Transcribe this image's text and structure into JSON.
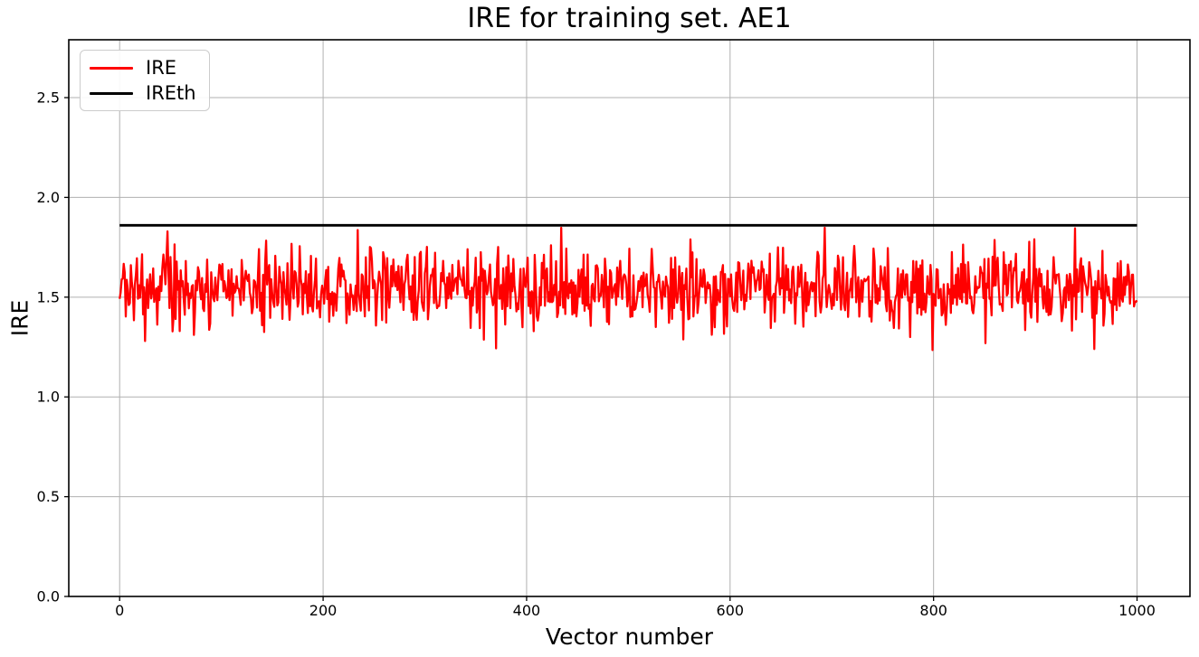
{
  "window": {
    "background_color": "#ffffff"
  },
  "chart_data": {
    "type": "line",
    "title": "IRE for training set. AE1",
    "xlabel": "Vector number",
    "ylabel": "IRE",
    "xlim": [
      -50,
      1052
    ],
    "ylim": [
      0,
      2.79
    ],
    "x_ticks": [
      0,
      200,
      400,
      600,
      800,
      1000
    ],
    "x_tick_labels": [
      "0",
      "200",
      "400",
      "600",
      "800",
      "1000"
    ],
    "y_ticks": [
      0,
      0.5,
      1,
      1.5,
      2,
      2.5
    ],
    "y_tick_labels": [
      "0.0",
      "0.5",
      "1.0",
      "1.5",
      "2.0",
      "2.5"
    ],
    "grid": {
      "visible": true,
      "color": "#b0b0b0"
    },
    "frame_color": "#000000",
    "legend": {
      "position": "upper-left",
      "entries": [
        {
          "label": "IRE",
          "color": "#ff0000"
        },
        {
          "label": "IREth",
          "color": "#000000"
        }
      ]
    },
    "series": [
      {
        "name": "IRE",
        "style": "noisy-line",
        "color": "#ff0000",
        "linewidth": 2.3,
        "x_start": 0,
        "x_end": 1000,
        "n_points": 1001,
        "mean": 1.545,
        "std": 0.095,
        "clip_min": 1.235,
        "clip_max": 1.848,
        "seed": 20,
        "notable_points": [
          {
            "x": 47,
            "y": 1.83
          },
          {
            "x": 434,
            "y": 1.848
          },
          {
            "x": 958,
            "y": 1.24
          }
        ]
      },
      {
        "name": "IREth",
        "style": "hline",
        "color": "#000000",
        "linewidth": 2.8,
        "x_start": 0,
        "x_end": 1000,
        "value": 1.86
      }
    ]
  }
}
